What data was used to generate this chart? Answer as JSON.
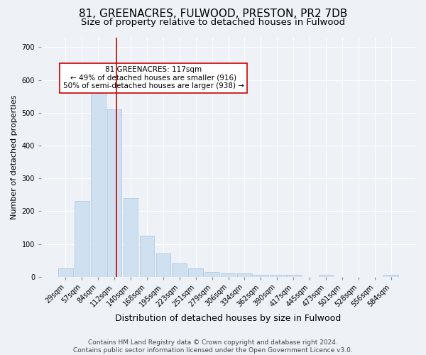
{
  "title": "81, GREENACRES, FULWOOD, PRESTON, PR2 7DB",
  "subtitle": "Size of property relative to detached houses in Fulwood",
  "xlabel": "Distribution of detached houses by size in Fulwood",
  "ylabel": "Number of detached properties",
  "categories": [
    "29sqm",
    "57sqm",
    "84sqm",
    "112sqm",
    "140sqm",
    "168sqm",
    "195sqm",
    "223sqm",
    "251sqm",
    "279sqm",
    "306sqm",
    "334sqm",
    "362sqm",
    "390sqm",
    "417sqm",
    "445sqm",
    "473sqm",
    "501sqm",
    "528sqm",
    "556sqm",
    "584sqm"
  ],
  "values": [
    25,
    230,
    570,
    510,
    240,
    125,
    70,
    40,
    25,
    15,
    10,
    10,
    5,
    5,
    5,
    0,
    5,
    0,
    0,
    0,
    5
  ],
  "bar_color": "#cfe0f0",
  "bar_edge_color": "#aac4df",
  "vline_color": "#cc0000",
  "vline_x_data": 3.13,
  "annotation_text": "81 GREENACRES: 117sqm\n← 49% of detached houses are smaller (916)\n50% of semi-detached houses are larger (938) →",
  "annotation_box_facecolor": "#ffffff",
  "annotation_box_edgecolor": "#cc0000",
  "ylim": [
    0,
    730
  ],
  "yticks": [
    0,
    100,
    200,
    300,
    400,
    500,
    600,
    700
  ],
  "background_color": "#eef2f7",
  "grid_color": "#ffffff",
  "title_fontsize": 11,
  "subtitle_fontsize": 9.5,
  "xlabel_fontsize": 9,
  "ylabel_fontsize": 8,
  "tick_fontsize": 7,
  "annotation_fontsize": 7.5,
  "footer_fontsize": 6.5,
  "footer_text": "Contains HM Land Registry data © Crown copyright and database right 2024.\nContains public sector information licensed under the Open Government Licence v3.0."
}
